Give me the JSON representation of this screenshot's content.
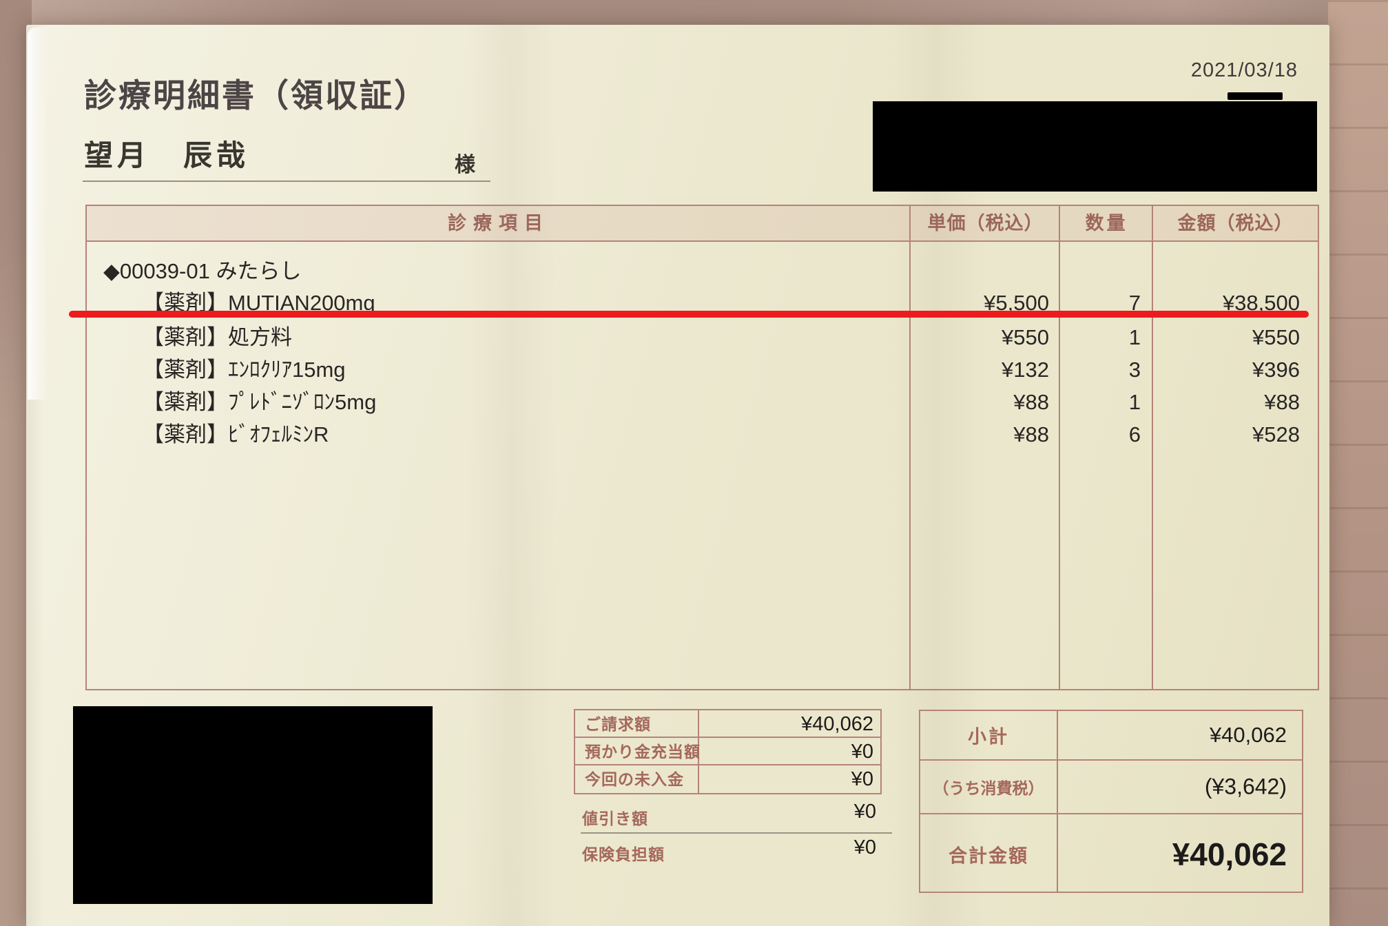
{
  "document": {
    "title": "診療明細書（領収証）",
    "date": "2021/03/18",
    "patient_name": "望月　辰哉",
    "honorific": "様"
  },
  "items_table": {
    "headers": {
      "item": "診療項目",
      "unit_price": "単価（税込）",
      "quantity": "数量",
      "amount": "金額（税込）"
    },
    "group_heading": "◆00039-01 みたらし",
    "rows": [
      {
        "item": "【薬剤】MUTIAN200mg",
        "unit_price": "¥5,500",
        "quantity": "7",
        "amount": "¥38,500",
        "highlighted": "red-underline"
      },
      {
        "item": "【薬剤】処方料",
        "unit_price": "¥550",
        "quantity": "1",
        "amount": "¥550"
      },
      {
        "item": "【薬剤】ｴﾝﾛｸﾘｱ15mg",
        "unit_price": "¥132",
        "quantity": "3",
        "amount": "¥396"
      },
      {
        "item": "【薬剤】ﾌﾟﾚﾄﾞﾆｿﾞﾛﾝ5mg",
        "unit_price": "¥88",
        "quantity": "1",
        "amount": "¥88"
      },
      {
        "item": "【薬剤】ﾋﾞｵﾌｪﾙﾐﾝR",
        "unit_price": "¥88",
        "quantity": "6",
        "amount": "¥528"
      }
    ]
  },
  "billing_summary": {
    "boxed_rows": [
      {
        "label": "ご請求額",
        "value": "¥40,062"
      },
      {
        "label": "預かり金充当額",
        "value": "¥0"
      },
      {
        "label": "今回の未入金",
        "value": "¥0"
      }
    ],
    "extra_rows": [
      {
        "label": "値引き額",
        "value": "¥0"
      },
      {
        "label": "保険負担額",
        "value": "¥0"
      }
    ]
  },
  "totals": {
    "rows": [
      {
        "label": "小計",
        "value": "¥40,062"
      },
      {
        "label": "（うち消費税）",
        "value": "(¥3,642)"
      },
      {
        "label": "合計金額",
        "value": "¥40,062"
      }
    ]
  },
  "colors": {
    "table_border": "#b4837b",
    "label_maroon": "#a4685c",
    "highlight_red": "#ec1b1e",
    "paper": "#ece9d2",
    "redaction": "#000000"
  }
}
